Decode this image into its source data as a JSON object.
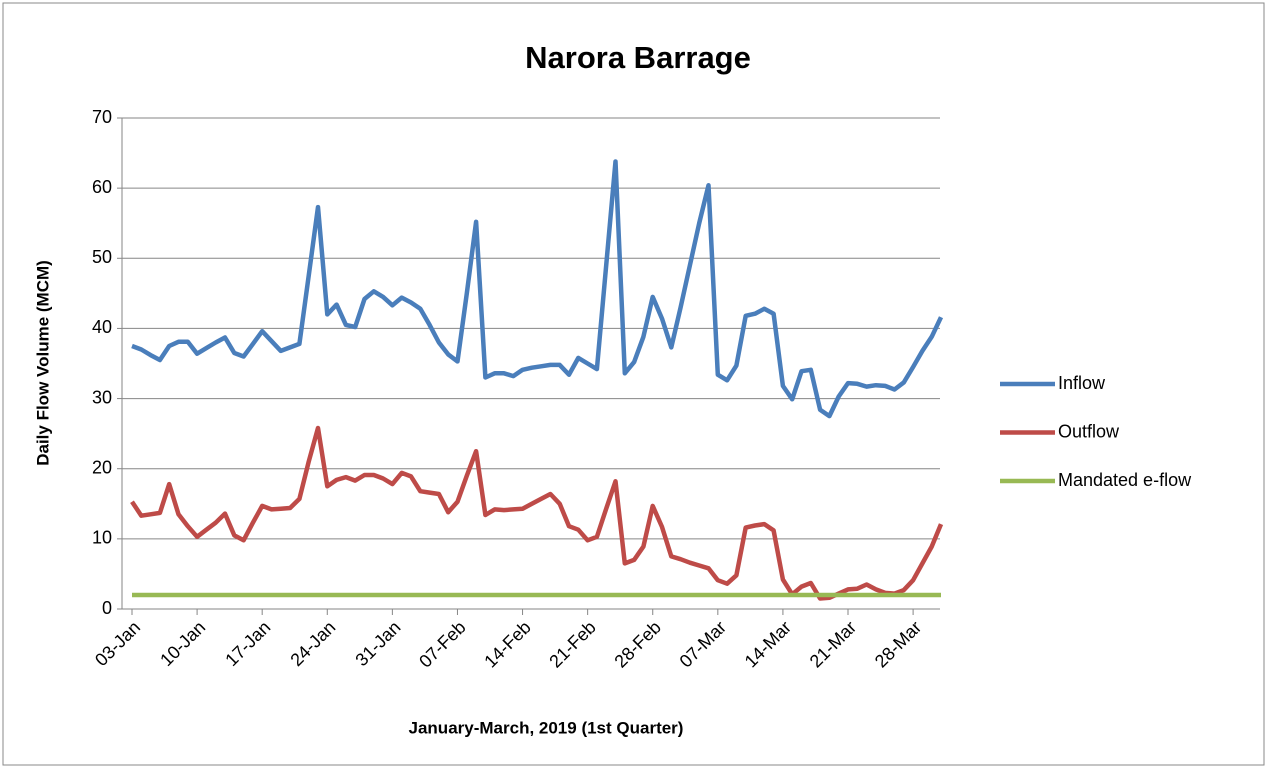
{
  "chart_data": {
    "type": "line",
    "title": "Narora Barrage",
    "x_label": "January-March, 2019 (1st Quarter)",
    "y_label": "Daily Flow Volume (MCM)",
    "categories": [
      "03-Jan",
      null,
      null,
      null,
      null,
      null,
      null,
      "10-Jan",
      null,
      null,
      null,
      null,
      null,
      null,
      "17-Jan",
      null,
      null,
      null,
      null,
      null,
      null,
      "24-Jan",
      null,
      null,
      null,
      null,
      null,
      null,
      "31-Jan",
      null,
      null,
      null,
      null,
      null,
      null,
      "07-Feb",
      null,
      null,
      null,
      null,
      null,
      null,
      "14-Feb",
      null,
      null,
      null,
      null,
      null,
      null,
      "21-Feb",
      null,
      null,
      null,
      null,
      null,
      null,
      "28-Feb",
      null,
      null,
      null,
      null,
      null,
      null,
      "07-Mar",
      null,
      null,
      null,
      null,
      null,
      null,
      "14-Mar",
      null,
      null,
      null,
      null,
      null,
      null,
      "21-Mar",
      null,
      null,
      null,
      null,
      null,
      null,
      "28-Mar",
      null,
      null,
      null
    ],
    "series": [
      {
        "name": "Inflow",
        "color": "#4a7ebb",
        "values": [
          37.5,
          37,
          36.2,
          35.5,
          37.5,
          38.1,
          38.1,
          36.4,
          37.2,
          38,
          38.7,
          36.5,
          36,
          37.8,
          39.6,
          38.2,
          36.8,
          37.3,
          37.8,
          47.5,
          57.3,
          42,
          43.4,
          40.5,
          40.2,
          44.2,
          45.3,
          44.5,
          43.3,
          44.4,
          43.7,
          42.8,
          40.5,
          38,
          36.3,
          35.3,
          45,
          55.2,
          33,
          33.6,
          33.6,
          33.2,
          34.1,
          34.4,
          34.6,
          34.8,
          34.8,
          33.4,
          35.8,
          35,
          34.2,
          49,
          63.8,
          33.6,
          35.2,
          38.8,
          44.5,
          41.4,
          37.3,
          43,
          49,
          55,
          60.4,
          33.4,
          32.6,
          34.7,
          41.8,
          42.1,
          42.8,
          42.1,
          31.8,
          29.9,
          33.9,
          34.1,
          28.4,
          27.5,
          30.3,
          32.2,
          32.1,
          31.7,
          31.9,
          31.8,
          31.3,
          32.3,
          34.5,
          36.8,
          38.8,
          41.6
        ]
      },
      {
        "name": "Outflow",
        "color": "#be4b48",
        "values": [
          15.3,
          13.3,
          13.5,
          13.7,
          17.8,
          13.5,
          11.8,
          10.3,
          11.3,
          12.3,
          13.6,
          10.5,
          9.8,
          12.3,
          14.7,
          14.2,
          14.3,
          14.4,
          15.7,
          21,
          25.8,
          17.5,
          18.4,
          18.8,
          18.3,
          19.1,
          19.1,
          18.6,
          17.8,
          19.4,
          18.9,
          16.8,
          16.6,
          16.4,
          13.8,
          15.3,
          19,
          22.5,
          13.4,
          14.2,
          14.1,
          14.2,
          14.3,
          15,
          15.7,
          16.4,
          15,
          11.8,
          11.3,
          9.8,
          10.3,
          14.3,
          18.2,
          6.5,
          7,
          8.9,
          14.7,
          11.7,
          7.5,
          7.1,
          6.6,
          6.2,
          5.8,
          4.1,
          3.6,
          4.8,
          11.6,
          11.9,
          12.1,
          11.2,
          4.2,
          2.1,
          3.2,
          3.7,
          1.5,
          1.6,
          2.2,
          2.8,
          2.9,
          3.5,
          2.8,
          2.3,
          2.2,
          2.7,
          4.1,
          6.5,
          8.9,
          12.1
        ]
      },
      {
        "name": "Mandated e-flow",
        "color": "#98b954",
        "values": [
          2,
          2,
          2,
          2,
          2,
          2,
          2,
          2,
          2,
          2,
          2,
          2,
          2,
          2,
          2,
          2,
          2,
          2,
          2,
          2,
          2,
          2,
          2,
          2,
          2,
          2,
          2,
          2,
          2,
          2,
          2,
          2,
          2,
          2,
          2,
          2,
          2,
          2,
          2,
          2,
          2,
          2,
          2,
          2,
          2,
          2,
          2,
          2,
          2,
          2,
          2,
          2,
          2,
          2,
          2,
          2,
          2,
          2,
          2,
          2,
          2,
          2,
          2,
          2,
          2,
          2,
          2,
          2,
          2,
          2,
          2,
          2,
          2,
          2,
          2,
          2,
          2,
          2,
          2,
          2,
          2,
          2,
          2,
          2,
          2,
          2,
          2,
          2
        ]
      }
    ],
    "ylim": [
      0,
      70
    ],
    "yticks": [
      0,
      10,
      20,
      30,
      40,
      50,
      60,
      70
    ],
    "grid": true,
    "legend": "right"
  }
}
